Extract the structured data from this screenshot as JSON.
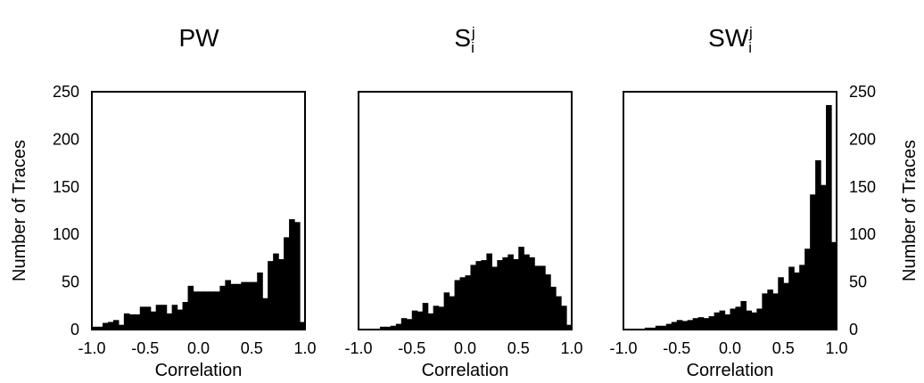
{
  "chart_data": [
    {
      "type": "bar",
      "title": {
        "base": "PW",
        "sub": "",
        "sup": ""
      },
      "xlabel": "Correlation",
      "ylabel": "Number of Traces",
      "xlim": [
        -1.0,
        1.0
      ],
      "ylim": [
        0,
        250
      ],
      "x_ticks": [
        "-1.0",
        "-0.5",
        "0.0",
        "0.5",
        "1.0"
      ],
      "y_ticks": [
        "0",
        "50",
        "100",
        "150",
        "200",
        "250"
      ],
      "y_axis_side": "left",
      "grid": false,
      "bin_width": 0.05,
      "x": [
        -0.975,
        -0.925,
        -0.875,
        -0.825,
        -0.775,
        -0.725,
        -0.675,
        -0.625,
        -0.575,
        -0.525,
        -0.475,
        -0.425,
        -0.375,
        -0.325,
        -0.275,
        -0.225,
        -0.175,
        -0.125,
        -0.075,
        -0.025,
        0.025,
        0.075,
        0.125,
        0.175,
        0.225,
        0.275,
        0.325,
        0.375,
        0.425,
        0.475,
        0.525,
        0.575,
        0.625,
        0.675,
        0.725,
        0.775,
        0.825,
        0.875,
        0.925,
        0.975
      ],
      "values": [
        3,
        3,
        7,
        8,
        10,
        5,
        17,
        16,
        16,
        24,
        24,
        19,
        26,
        26,
        17,
        26,
        21,
        29,
        46,
        40,
        40,
        40,
        40,
        40,
        46,
        52,
        48,
        48,
        50,
        50,
        50,
        60,
        33,
        72,
        80,
        74,
        97,
        116,
        113,
        8
      ]
    },
    {
      "type": "bar",
      "title": {
        "base": "S",
        "sub": "i",
        "sup": "j"
      },
      "xlabel": "Correlation",
      "ylabel": "",
      "xlim": [
        -1.0,
        1.0
      ],
      "ylim": [
        0,
        250
      ],
      "x_ticks": [
        "-1.0",
        "-0.5",
        "0.0",
        "0.5",
        "1.0"
      ],
      "y_ticks": [],
      "y_axis_side": "none",
      "grid": false,
      "bin_width": 0.05,
      "x": [
        -0.975,
        -0.925,
        -0.875,
        -0.825,
        -0.775,
        -0.725,
        -0.675,
        -0.625,
        -0.575,
        -0.525,
        -0.475,
        -0.425,
        -0.375,
        -0.325,
        -0.275,
        -0.225,
        -0.175,
        -0.125,
        -0.075,
        -0.025,
        0.025,
        0.075,
        0.125,
        0.175,
        0.225,
        0.275,
        0.325,
        0.375,
        0.425,
        0.475,
        0.525,
        0.575,
        0.625,
        0.675,
        0.725,
        0.775,
        0.825,
        0.875,
        0.925,
        0.975
      ],
      "values": [
        0,
        0,
        0,
        0,
        3,
        3,
        4,
        6,
        12,
        11,
        20,
        19,
        28,
        17,
        25,
        24,
        39,
        35,
        52,
        55,
        57,
        68,
        72,
        73,
        80,
        66,
        73,
        76,
        79,
        74,
        87,
        79,
        76,
        67,
        67,
        58,
        45,
        35,
        25,
        5
      ]
    },
    {
      "type": "bar",
      "title": {
        "base": "SW",
        "sub": "i",
        "sup": "j"
      },
      "xlabel": "Correlation",
      "ylabel": "Number of Traces",
      "xlim": [
        -1.0,
        1.0
      ],
      "ylim": [
        0,
        250
      ],
      "x_ticks": [
        "-1.0",
        "-0.5",
        "0.0",
        "0.5",
        "1.0"
      ],
      "y_ticks": [
        "0",
        "50",
        "100",
        "150",
        "200",
        "250"
      ],
      "y_axis_side": "right",
      "grid": false,
      "bin_width": 0.05,
      "x": [
        -0.975,
        -0.925,
        -0.875,
        -0.825,
        -0.775,
        -0.725,
        -0.675,
        -0.625,
        -0.575,
        -0.525,
        -0.475,
        -0.425,
        -0.375,
        -0.325,
        -0.275,
        -0.225,
        -0.175,
        -0.125,
        -0.075,
        -0.025,
        0.025,
        0.075,
        0.125,
        0.175,
        0.225,
        0.275,
        0.325,
        0.375,
        0.425,
        0.475,
        0.525,
        0.575,
        0.625,
        0.675,
        0.725,
        0.775,
        0.825,
        0.875,
        0.925,
        0.975
      ],
      "values": [
        0,
        0,
        0,
        0,
        2,
        2,
        4,
        4,
        6,
        8,
        10,
        9,
        10,
        12,
        13,
        12,
        14,
        18,
        20,
        16,
        22,
        24,
        30,
        20,
        18,
        22,
        38,
        42,
        38,
        55,
        49,
        66,
        60,
        68,
        85,
        142,
        178,
        152,
        236,
        92
      ]
    }
  ]
}
